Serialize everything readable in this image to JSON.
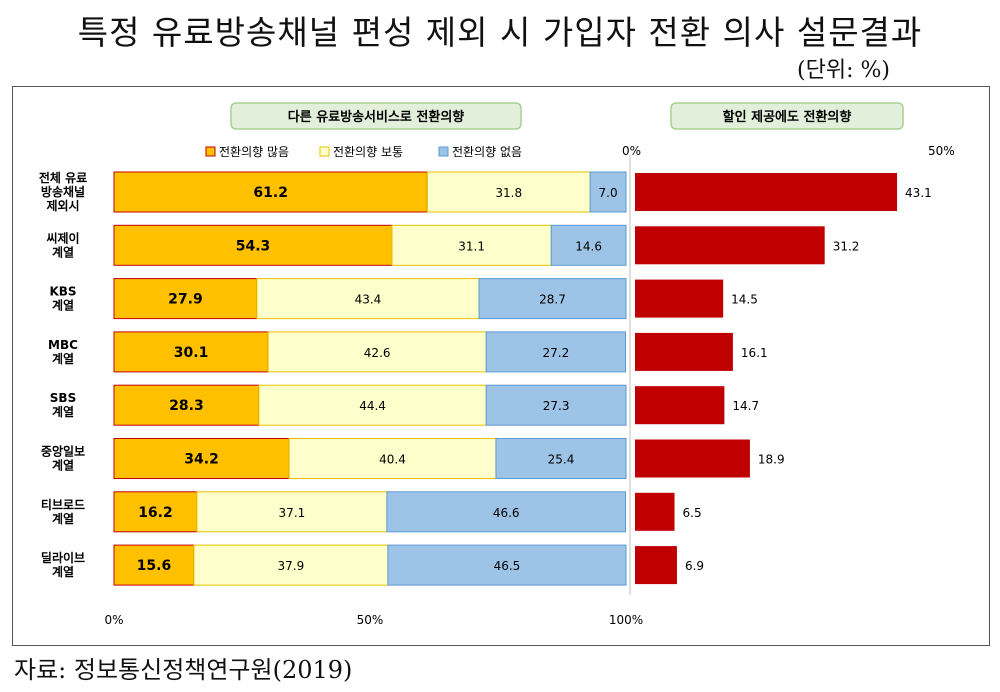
{
  "title": "특정 유료방송채널 편성 제외 시 가입자 전환 의사 설문결과",
  "unit": "(단위: %)",
  "source": "자료: 정보통신정책연구원(2019)",
  "colors": {
    "high": "#ffc000",
    "normal": "#ffffcc",
    "none": "#9dc3e6",
    "discount": "#c00000",
    "headerBg": "#e2efda",
    "headerBorder": "#a9d08e"
  },
  "chart_data": [
    {
      "type": "bar",
      "orientation": "horizontal",
      "stacked": true,
      "title": "다른 유료방송서비스로 전환의향",
      "categories": [
        "전체 유료\n방송채널\n제외시",
        "씨제이\n계열",
        "KBS\n계열",
        "MBC\n계열",
        "SBS\n계열",
        "중앙일보\n계열",
        "티브로드\n계열",
        "딜라이브\n계열"
      ],
      "series": [
        {
          "name": "전환의향 많음",
          "values": [
            61.2,
            54.3,
            27.9,
            30.1,
            28.3,
            34.2,
            16.2,
            15.6
          ]
        },
        {
          "name": "전환의향 보통",
          "values": [
            31.8,
            31.1,
            43.4,
            42.6,
            44.4,
            40.4,
            37.1,
            37.9
          ]
        },
        {
          "name": "전환의향 없음",
          "values": [
            7.0,
            14.6,
            28.7,
            27.2,
            27.3,
            25.4,
            46.6,
            46.5
          ]
        }
      ],
      "xlim": [
        0,
        100
      ],
      "xticks": [
        "0%",
        "50%",
        "100%"
      ]
    },
    {
      "type": "bar",
      "orientation": "horizontal",
      "title": "할인 제공에도 전환의향",
      "categories": [
        "전체 유료 방송채널 제외시",
        "씨제이 계열",
        "KBS 계열",
        "MBC 계열",
        "SBS 계열",
        "중앙일보 계열",
        "티브로드 계열",
        "딜라이브 계열"
      ],
      "values": [
        43.1,
        31.2,
        14.5,
        16.1,
        14.7,
        18.9,
        6.5,
        6.9
      ],
      "xlim": [
        0,
        50
      ],
      "xticks": [
        "0%",
        "50%"
      ]
    }
  ]
}
